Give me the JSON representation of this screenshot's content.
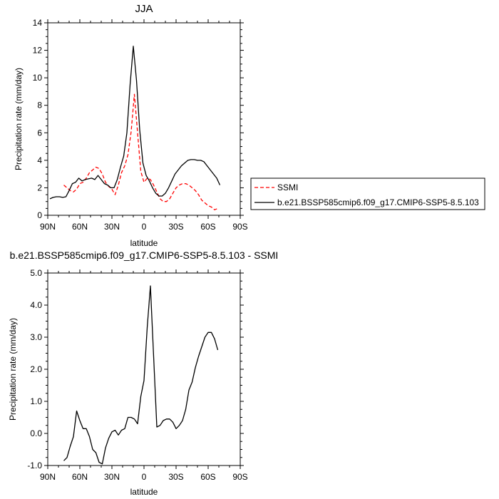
{
  "chart_data": [
    {
      "type": "line",
      "title": "JJA",
      "xlabel": "latitude",
      "ylabel": "Precipitation rate (mm/day)",
      "xlim": [
        90,
        -90
      ],
      "ylim": [
        0,
        14
      ],
      "x_ticks": [
        90,
        60,
        30,
        0,
        -30,
        -60,
        -90
      ],
      "x_tick_labels": [
        "90N",
        "60N",
        "30N",
        "0",
        "30S",
        "60S",
        "90S"
      ],
      "y_ticks": [
        0,
        2,
        4,
        6,
        8,
        10,
        12,
        14
      ],
      "y_tick_labels": [
        "0",
        "2",
        "4",
        "6",
        "8",
        "10",
        "12",
        "14"
      ],
      "grid": false,
      "legend_position": "right",
      "series": [
        {
          "name": "SSMI",
          "color": "#ff0000",
          "dash": "dashed",
          "x": [
            75,
            72,
            69,
            66,
            63,
            60,
            57,
            54,
            51,
            48,
            45,
            42,
            39,
            36,
            33,
            30,
            27,
            24,
            21,
            18,
            15,
            12,
            9,
            6,
            3,
            0,
            -3,
            -6,
            -9,
            -12,
            -15,
            -18,
            -21,
            -24,
            -27,
            -30,
            -33,
            -36,
            -39,
            -42,
            -45,
            -48,
            -51,
            -54,
            -57,
            -60,
            -63,
            -66,
            -69
          ],
          "y": [
            2.2,
            2.0,
            1.8,
            1.7,
            1.9,
            2.3,
            2.4,
            2.7,
            3.1,
            3.3,
            3.5,
            3.4,
            3.0,
            2.4,
            2.1,
            1.9,
            1.5,
            2.2,
            3.1,
            3.6,
            4.4,
            6.1,
            8.8,
            6.0,
            3.2,
            2.4,
            2.7,
            2.6,
            2.2,
            1.7,
            1.2,
            1.0,
            1.0,
            1.2,
            1.6,
            2.0,
            2.2,
            2.3,
            2.3,
            2.2,
            2.0,
            1.8,
            1.5,
            1.1,
            0.9,
            0.7,
            0.6,
            0.4,
            0.5
          ]
        },
        {
          "name": "b.e21.BSSP585cmip6.f09_g17.CMIP6-SSP5-8.5.103",
          "color": "#000000",
          "dash": "solid",
          "x": [
            88,
            85,
            82,
            79,
            76,
            73,
            70,
            67,
            64,
            61,
            58,
            55,
            52,
            49,
            46,
            43,
            40,
            37,
            34,
            31,
            28,
            25,
            22,
            19,
            16,
            13,
            10,
            7,
            4,
            1,
            -2,
            -5,
            -8,
            -11,
            -14,
            -17,
            -20,
            -23,
            -26,
            -29,
            -32,
            -35,
            -38,
            -41,
            -44,
            -47,
            -50,
            -53,
            -56,
            -59,
            -62,
            -65,
            -68,
            -71
          ],
          "y": [
            1.2,
            1.3,
            1.35,
            1.35,
            1.3,
            1.35,
            1.8,
            2.3,
            2.4,
            2.7,
            2.5,
            2.6,
            2.65,
            2.7,
            2.6,
            2.9,
            2.6,
            2.3,
            2.2,
            2.0,
            2.0,
            2.6,
            3.5,
            4.3,
            6.0,
            9.5,
            12.3,
            9.8,
            6.2,
            3.8,
            2.9,
            2.5,
            2.0,
            1.6,
            1.4,
            1.4,
            1.6,
            2.0,
            2.5,
            3.0,
            3.3,
            3.6,
            3.8,
            4.0,
            4.05,
            4.05,
            4.0,
            4.0,
            3.9,
            3.6,
            3.3,
            3.0,
            2.7,
            2.2
          ]
        }
      ]
    },
    {
      "type": "line",
      "title": "b.e21.BSSP585cmip6.f09_g17.CMIP6-SSP5-8.5.103 - SSMI",
      "xlabel": "latitude",
      "ylabel": "Precipitation rate (mm/day)",
      "xlim": [
        90,
        -90
      ],
      "ylim": [
        -1.0,
        5.0
      ],
      "x_ticks": [
        90,
        60,
        30,
        0,
        -30,
        -60,
        -90
      ],
      "x_tick_labels": [
        "90N",
        "60N",
        "30N",
        "0",
        "30S",
        "60S",
        "90S"
      ],
      "y_ticks": [
        -1.0,
        0.0,
        1.0,
        2.0,
        3.0,
        4.0,
        5.0
      ],
      "y_tick_labels": [
        "-1.0",
        "0.0",
        "1.0",
        "2.0",
        "3.0",
        "4.0",
        "5.0"
      ],
      "grid": false,
      "series": [
        {
          "color": "#000000",
          "dash": "solid",
          "x": [
            75,
            72,
            69,
            66,
            63,
            60,
            57,
            54,
            51,
            48,
            45,
            42,
            39,
            36,
            33,
            30,
            27,
            24,
            21,
            18,
            15,
            12,
            9,
            6,
            3,
            0,
            -3,
            -6,
            -9,
            -12,
            -15,
            -18,
            -21,
            -24,
            -27,
            -30,
            -33,
            -36,
            -39,
            -42,
            -45,
            -48,
            -51,
            -54,
            -57,
            -60,
            -63,
            -66,
            -69
          ],
          "y": [
            -0.85,
            -0.75,
            -0.4,
            -0.1,
            0.7,
            0.4,
            0.15,
            0.15,
            -0.1,
            -0.5,
            -0.6,
            -0.9,
            -0.95,
            -0.45,
            -0.15,
            0.05,
            0.1,
            -0.05,
            0.1,
            0.15,
            0.5,
            0.5,
            0.45,
            0.3,
            1.15,
            1.65,
            3.3,
            4.6,
            2.4,
            0.2,
            0.25,
            0.4,
            0.45,
            0.45,
            0.35,
            0.15,
            0.25,
            0.4,
            0.75,
            1.35,
            1.6,
            2.05,
            2.4,
            2.7,
            3.0,
            3.15,
            3.15,
            2.95,
            2.6
          ]
        }
      ]
    }
  ]
}
